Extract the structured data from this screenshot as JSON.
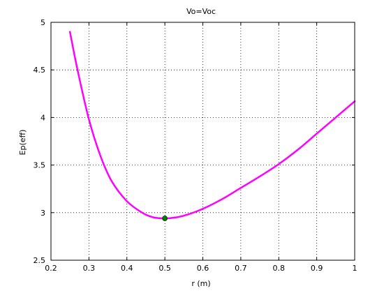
{
  "chart_data": {
    "type": "line",
    "title": "Vo=Voc",
    "xlabel": "r (m)",
    "ylabel": "Ep(eff)",
    "xlim": [
      0.2,
      1.0
    ],
    "ylim": [
      2.5,
      5.0
    ],
    "grid": true,
    "x_ticks": [
      "0.2",
      "0.3",
      "0.4",
      "0.5",
      "0.6",
      "0.7",
      "0.8",
      "0.9",
      "1"
    ],
    "y_ticks": [
      "2.5",
      "3",
      "3.5",
      "4",
      "4.5",
      "5"
    ],
    "x_tick_values": [
      0.2,
      0.3,
      0.4,
      0.5,
      0.6,
      0.7,
      0.8,
      0.9,
      1.0
    ],
    "y_tick_values": [
      2.5,
      3.0,
      3.5,
      4.0,
      4.5,
      5.0
    ],
    "series": [
      {
        "color": "#ff00ff",
        "x": [
          0.25,
          0.27,
          0.3,
          0.33,
          0.36,
          0.4,
          0.44,
          0.47,
          0.5,
          0.53,
          0.56,
          0.6,
          0.65,
          0.7,
          0.75,
          0.8,
          0.85,
          0.9,
          0.95,
          1.0
        ],
        "y": [
          4.9,
          4.5,
          3.98,
          3.6,
          3.33,
          3.12,
          3.0,
          2.95,
          2.94,
          2.95,
          2.98,
          3.04,
          3.14,
          3.26,
          3.38,
          3.51,
          3.66,
          3.83,
          4.0,
          4.17
        ]
      }
    ],
    "markers": [
      {
        "x": 0.5,
        "y": 2.94,
        "color": "#008000"
      }
    ]
  }
}
